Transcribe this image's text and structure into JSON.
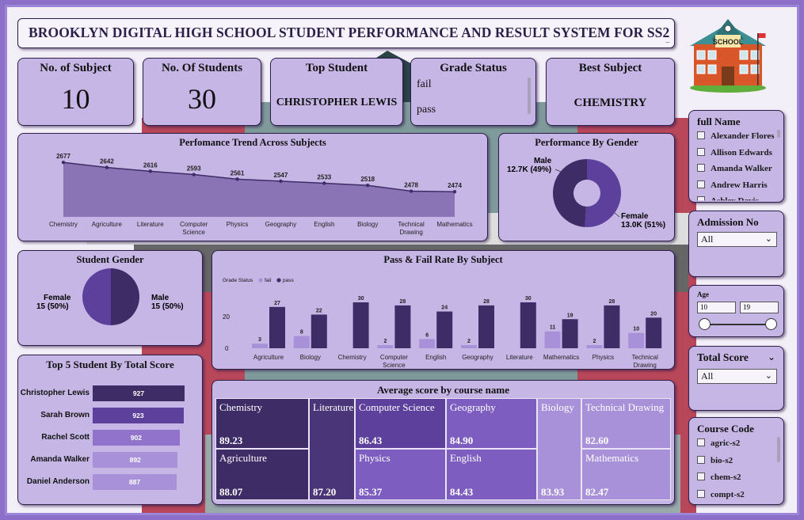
{
  "title": "BROOKLYN DIGITAL HIGH SCHOOL STUDENT PERFORMANCE AND RESULT SYSTEM FOR SS2",
  "kpis": {
    "subjects": {
      "label": "No. of Subject",
      "value": "10"
    },
    "students": {
      "label": "No. Of Students",
      "value": "30"
    },
    "top_student": {
      "label": "Top Student",
      "value": "CHRISTOPHER LEWIS"
    },
    "best_subject": {
      "label": "Best Subject",
      "value": "CHEMISTRY"
    }
  },
  "grade_status": {
    "label": "Grade Status",
    "options": [
      "fail",
      "pass"
    ]
  },
  "trend": {
    "title": "Perfomance Trend Across Subjects",
    "categories": [
      "Chemistry",
      "Agriculture",
      "Literature",
      "Computer Science",
      "Physics",
      "Geography",
      "English",
      "Biology",
      "Technical Drawing",
      "Mathematics"
    ],
    "values": [
      2677,
      2642,
      2616,
      2593,
      2561,
      2547,
      2533,
      2518,
      2478,
      2474
    ]
  },
  "gender_perf": {
    "title": "Performance By Gender",
    "male_label": "Male",
    "male_value": "12.7K (49%)",
    "female_label": "Female",
    "female_value": "13.0K (51%)",
    "male_share": 0.49
  },
  "student_gender": {
    "title": "Student Gender",
    "female_label": "Female",
    "female_value": "15 (50%)",
    "male_label": "Male",
    "male_value": "15 (50%)"
  },
  "passfail": {
    "title": "Pass & Fail Rate By Subject",
    "legend_title": "Grade Status",
    "legend": [
      "fail",
      "pass"
    ],
    "categories": [
      "Agriculture",
      "Biology",
      "Chemistry",
      "Computer Science",
      "English",
      "Geography",
      "Literature",
      "Mathematics",
      "Physics",
      "Technical Drawing"
    ],
    "fail": [
      3,
      8,
      null,
      2,
      6,
      2,
      null,
      11,
      2,
      10
    ],
    "pass": [
      27,
      22,
      30,
      28,
      24,
      28,
      30,
      19,
      28,
      20
    ],
    "ticks": [
      "0",
      "20"
    ]
  },
  "top5": {
    "title": "Top 5 Student By Total Score",
    "students": [
      "Christopher Lewis",
      "Sarah Brown",
      "Rachel Scott",
      "Amanda Walker",
      "Daniel Anderson"
    ],
    "scores": [
      927,
      923,
      902,
      892,
      887
    ],
    "colors": [
      "#3d2c66",
      "#5d3f9c",
      "#9273cc",
      "#a891d9",
      "#a891d9"
    ]
  },
  "avg_score": {
    "title": "Average score by course name",
    "items": [
      {
        "name": "Chemistry",
        "value": "89.23"
      },
      {
        "name": "Agriculture",
        "value": "88.07"
      },
      {
        "name": "Literature",
        "value": "87.20"
      },
      {
        "name": "Computer Science",
        "value": "86.43"
      },
      {
        "name": "Physics",
        "value": "85.37"
      },
      {
        "name": "Geography",
        "value": "84.90"
      },
      {
        "name": "English",
        "value": "84.43"
      },
      {
        "name": "Biology",
        "value": "83.93"
      },
      {
        "name": "Technical Drawing",
        "value": "82.60"
      },
      {
        "name": "Mathematics",
        "value": "82.47"
      }
    ]
  },
  "filters": {
    "full_name": {
      "label": "full Name",
      "items": [
        "Alexander Flores",
        "Allison Edwards",
        "Amanda Walker",
        "Andrew Harris",
        "Ashley Davis"
      ]
    },
    "admission": {
      "label": "Admission No",
      "value": "All"
    },
    "age": {
      "label": "Age",
      "min": "10",
      "max": "19"
    },
    "total_score": {
      "label": "Total Score",
      "value": "All"
    },
    "course_code": {
      "label": "Course Code",
      "items": [
        "agric-s2",
        "bio-s2",
        "chem-s2",
        "compt-s2"
      ]
    }
  },
  "school_sign": "SCHOOL",
  "colors": {
    "dark": "#3d2c66",
    "mid": "#5d3f9c",
    "light": "#a891d9",
    "panel": "#c6b6e6"
  }
}
